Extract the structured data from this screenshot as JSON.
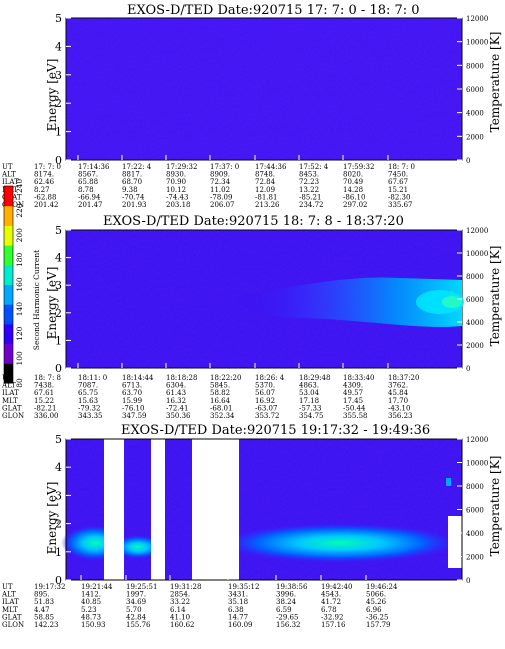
{
  "chart_data": [
    {
      "type": "heatmap",
      "title": "EXOS-D/TED   Date:920715  17: 7: 0 - 18: 7: 0",
      "ylabel": "Energy [eV]",
      "ylabel_right": "Temperature [K]",
      "ylim": [
        0,
        5
      ],
      "ylim_right": [
        0,
        12000
      ],
      "yticks": [
        "0",
        "1",
        "2",
        "3",
        "4",
        "5"
      ],
      "yticks_right": [
        "0",
        "2000",
        "4000",
        "6000",
        "8000",
        "10000",
        "12000"
      ],
      "row_labels": [
        "UT",
        "ALT",
        "ILAT",
        "MLT",
        "GLAT",
        "GLON"
      ],
      "columns": [
        [
          "17: 7: 0",
          "8174.",
          "62.46",
          "8.27",
          "-62.88",
          "201.42"
        ],
        [
          "17:14:36",
          "8567.",
          "65.88",
          "8.78",
          "-66.94",
          "201.47"
        ],
        [
          "17:22: 4",
          "8817.",
          "68.70",
          "9.38",
          "-70.74",
          "201.93"
        ],
        [
          "17:29:32",
          "8930.",
          "70.90",
          "10.12",
          "-74.43",
          "203.18"
        ],
        [
          "17:37: 0",
          "8909.",
          "72.34",
          "11.02",
          "-78.09",
          "206.07"
        ],
        [
          "17:44:36",
          "8748.",
          "72.84",
          "12.09",
          "-81.81",
          "213.26"
        ],
        [
          "17:52: 4",
          "8453.",
          "72.23",
          "13.22",
          "-85.21",
          "234.72"
        ],
        [
          "17:59:32",
          "8020.",
          "70.49",
          "14.28",
          "-86.10",
          "297.02"
        ],
        [
          "18: 7: 0",
          "7450.",
          "67.67",
          "15.21",
          "-82.30",
          "335.67"
        ]
      ]
    },
    {
      "type": "heatmap",
      "title": "EXOS-D/TED   Date:920715  18: 7: 8 - 18:37:20",
      "ylabel": "Energy [eV]",
      "ylabel_right": "Temperature [K]",
      "ylim": [
        0,
        5
      ],
      "ylim_right": [
        0,
        12000
      ],
      "yticks": [
        "0",
        "1",
        "2",
        "3",
        "4",
        "5"
      ],
      "yticks_right": [
        "0",
        "2000",
        "4000",
        "6000",
        "8000",
        "10000",
        "12000"
      ],
      "row_labels": [
        "UT",
        "ALT",
        "ILAT",
        "MLT",
        "GLAT",
        "GLON"
      ],
      "columns": [
        [
          "18: 7: 8",
          "7438.",
          "67.61",
          "15.22",
          "-82.21",
          "336.00"
        ],
        [
          "18:11: 0",
          "7087.",
          "65.75",
          "15.63",
          "-79.32",
          "343.35"
        ],
        [
          "18:14:44",
          "6713.",
          "63.70",
          "15.99",
          "-76.10",
          "347.59"
        ],
        [
          "18:18:28",
          "6304.",
          "61.43",
          "16.32",
          "-72.41",
          "350.36"
        ],
        [
          "18:22:20",
          "5845.",
          "58.82",
          "16.64",
          "-68.01",
          "352.34"
        ],
        [
          "18:26: 4",
          "5370.",
          "56.07",
          "16.92",
          "-63.07",
          "353.72"
        ],
        [
          "18:29:48",
          "4863.",
          "53.04",
          "17.18",
          "-57.33",
          "354.75"
        ],
        [
          "18:33:40",
          "4309.",
          "49.57",
          "17.45",
          "-50.44",
          "355.58"
        ],
        [
          "18:37:20",
          "3762.",
          "45.84",
          "17.70",
          "-43.10",
          "356.23"
        ]
      ]
    },
    {
      "type": "heatmap",
      "title": "EXOS-D/TED   Date:920715  19:17:32 - 19:49:36",
      "ylabel": "Energy [eV]",
      "ylabel_right": "Temperature [K]",
      "ylim": [
        0,
        5
      ],
      "ylim_right": [
        0,
        12000
      ],
      "yticks": [
        "0",
        "1",
        "2",
        "3",
        "4",
        "5"
      ],
      "yticks_right": [
        "0",
        "2000",
        "4000",
        "6000",
        "8000",
        "10000",
        "12000"
      ],
      "row_labels": [
        "UT",
        "ALT",
        "ILAT",
        "MLT",
        "GLAT",
        "GLON"
      ],
      "columns": [
        [
          "19:17:32",
          "895.",
          "51.83",
          "4.47",
          "58.85",
          "142.23"
        ],
        [
          "19:21:44",
          "1412.",
          "40.85",
          "5.23",
          "48.73",
          "150.93"
        ],
        [
          "19:25:51",
          "1997.",
          "34.69",
          "5.70",
          "42.84",
          "155.76"
        ],
        [
          "19:31:28",
          "2854.",
          "33.22",
          "6.14",
          "41.10",
          "160.62"
        ],
        [
          "19:35:12",
          "3431.",
          "35.18",
          "6.38",
          "14.77",
          "160.09"
        ],
        [
          "19:38:56",
          "3996.",
          "38.24",
          "6.59",
          "-29.65",
          "156.32"
        ],
        [
          "19:42:40",
          "4543.",
          "41.72",
          "6.78",
          "-32.92",
          "157.16"
        ],
        [
          "19:46:24",
          "5066.",
          "45.26",
          "6.96",
          "-36.25",
          "157.79"
        ]
      ]
    }
  ],
  "colorbar": {
    "label": "Second Harmonic Current",
    "ticks": [
      "80",
      "100",
      "120",
      "140",
      "160",
      "180",
      "200",
      "220",
      "240"
    ],
    "colors": [
      "#000000",
      "#6f00c8",
      "#3000ff",
      "#0050ff",
      "#00a8ff",
      "#00ecd0",
      "#30ff30",
      "#e6ff00",
      "#ffb000",
      "#ff0000"
    ]
  }
}
